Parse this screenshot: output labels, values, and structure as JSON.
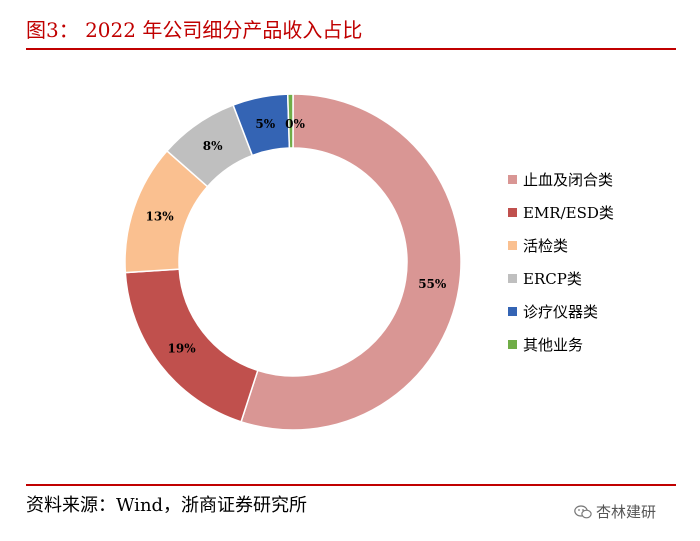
{
  "header": {
    "title": "图3： 2022 年公司细分产品收入占比"
  },
  "footer": {
    "source": "资料来源：Wind，浙商证券研究所",
    "watermark": "杏林建研"
  },
  "chart_data": {
    "type": "pie",
    "subtype": "donut",
    "title": "2022 年公司细分产品收入占比",
    "categories": [
      "止血及闭合类",
      "EMR/ESD类",
      "活检类",
      "ERCP类",
      "诊疗仪器类",
      "其他业务"
    ],
    "values": [
      55,
      19,
      13,
      8,
      5,
      0
    ],
    "value_labels": [
      "55%",
      "19%",
      "13%",
      "8%",
      "5%",
      "0%"
    ],
    "display_values": [
      55.0,
      19.0,
      12.5,
      7.7,
      5.3,
      0.5
    ],
    "unit": "%",
    "legend_position": "right",
    "colors": [
      "#d99694",
      "#c0504d",
      "#fac090",
      "#bfbfbf",
      "#3464b4",
      "#70ad47"
    ]
  }
}
